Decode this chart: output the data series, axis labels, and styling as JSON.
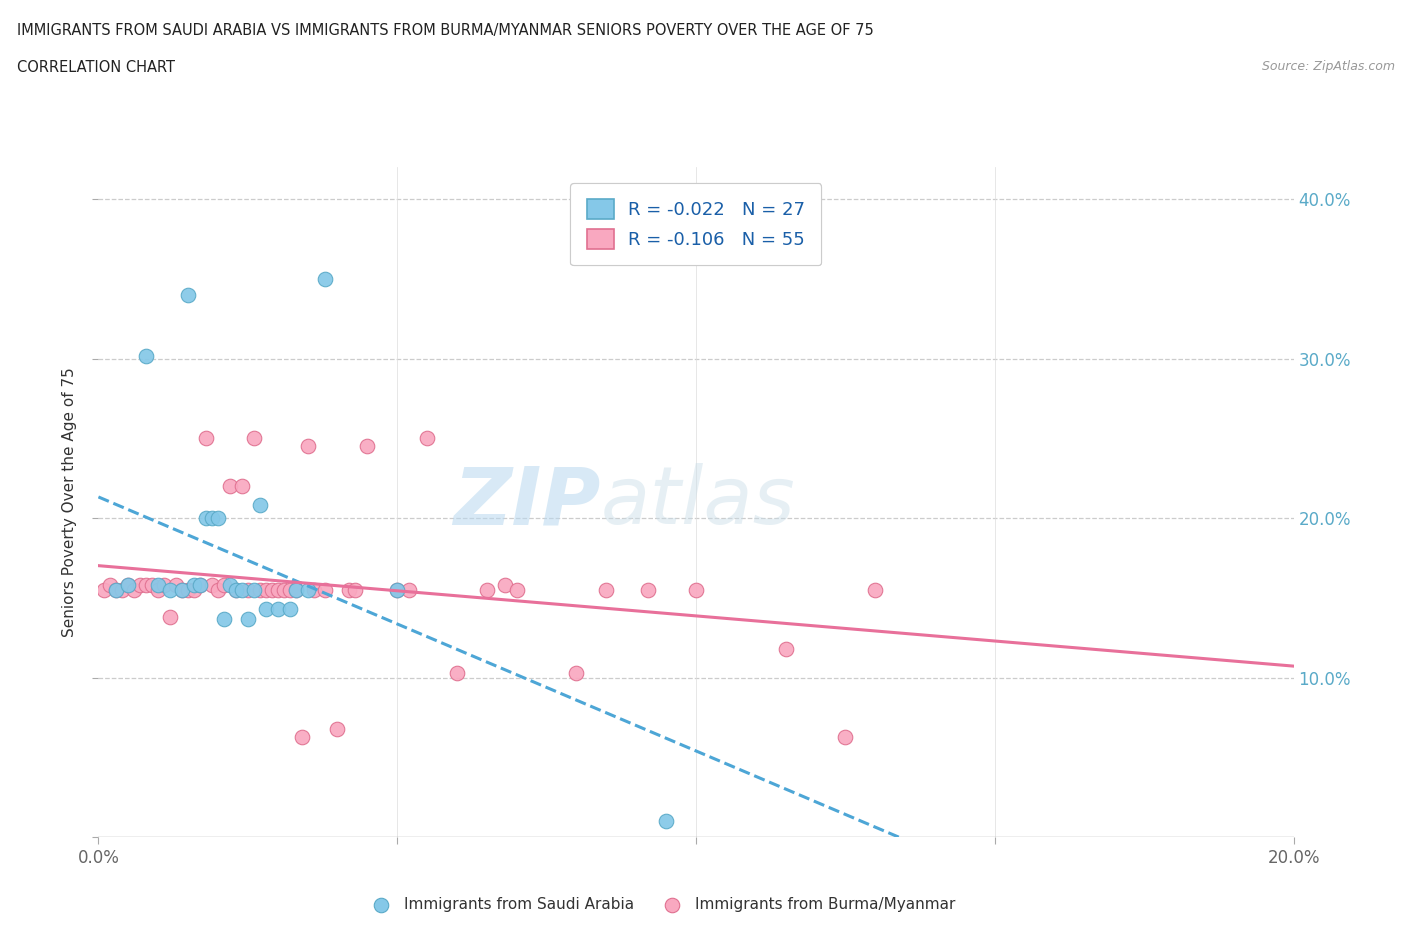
{
  "title_line1": "IMMIGRANTS FROM SAUDI ARABIA VS IMMIGRANTS FROM BURMA/MYANMAR SENIORS POVERTY OVER THE AGE OF 75",
  "title_line2": "CORRELATION CHART",
  "source_text": "Source: ZipAtlas.com",
  "ylabel": "Seniors Poverty Over the Age of 75",
  "xlim": [
    0.0,
    0.2
  ],
  "ylim": [
    0.0,
    0.42
  ],
  "saudi_color": "#85c8e8",
  "burma_color": "#f9a8c0",
  "saudi_edge": "#5aaac8",
  "burma_edge": "#e07090",
  "trend_saudi_color": "#4da6d6",
  "trend_burma_color": "#e8709a",
  "legend_R_saudi": "R = -0.022",
  "legend_N_saudi": "N = 27",
  "legend_R_burma": "R = -0.106",
  "legend_N_burma": "N = 55",
  "watermark_zip": "ZIP",
  "watermark_atlas": "atlas",
  "saudi_x": [
    0.003,
    0.005,
    0.008,
    0.01,
    0.012,
    0.014,
    0.015,
    0.016,
    0.017,
    0.018,
    0.019,
    0.02,
    0.021,
    0.022,
    0.023,
    0.024,
    0.025,
    0.026,
    0.027,
    0.028,
    0.03,
    0.032,
    0.033,
    0.035,
    0.038,
    0.05,
    0.095
  ],
  "saudi_y": [
    0.155,
    0.158,
    0.302,
    0.158,
    0.155,
    0.155,
    0.34,
    0.158,
    0.158,
    0.2,
    0.2,
    0.2,
    0.137,
    0.158,
    0.155,
    0.155,
    0.137,
    0.155,
    0.208,
    0.143,
    0.143,
    0.143,
    0.155,
    0.155,
    0.35,
    0.155,
    0.01
  ],
  "burma_x": [
    0.001,
    0.002,
    0.003,
    0.004,
    0.005,
    0.006,
    0.007,
    0.008,
    0.009,
    0.01,
    0.011,
    0.012,
    0.013,
    0.014,
    0.015,
    0.016,
    0.017,
    0.018,
    0.019,
    0.02,
    0.021,
    0.022,
    0.023,
    0.024,
    0.025,
    0.026,
    0.027,
    0.028,
    0.029,
    0.03,
    0.031,
    0.032,
    0.033,
    0.034,
    0.035,
    0.036,
    0.038,
    0.04,
    0.042,
    0.043,
    0.045,
    0.05,
    0.052,
    0.055,
    0.06,
    0.065,
    0.068,
    0.07,
    0.08,
    0.085,
    0.092,
    0.1,
    0.115,
    0.125,
    0.13
  ],
  "burma_y": [
    0.155,
    0.158,
    0.155,
    0.155,
    0.158,
    0.155,
    0.158,
    0.158,
    0.158,
    0.155,
    0.158,
    0.138,
    0.158,
    0.155,
    0.155,
    0.155,
    0.158,
    0.25,
    0.158,
    0.155,
    0.158,
    0.22,
    0.155,
    0.22,
    0.155,
    0.25,
    0.155,
    0.155,
    0.155,
    0.155,
    0.155,
    0.155,
    0.155,
    0.063,
    0.245,
    0.155,
    0.155,
    0.068,
    0.155,
    0.155,
    0.245,
    0.155,
    0.155,
    0.25,
    0.103,
    0.155,
    0.158,
    0.155,
    0.103,
    0.155,
    0.155,
    0.155,
    0.118,
    0.063,
    0.155
  ]
}
